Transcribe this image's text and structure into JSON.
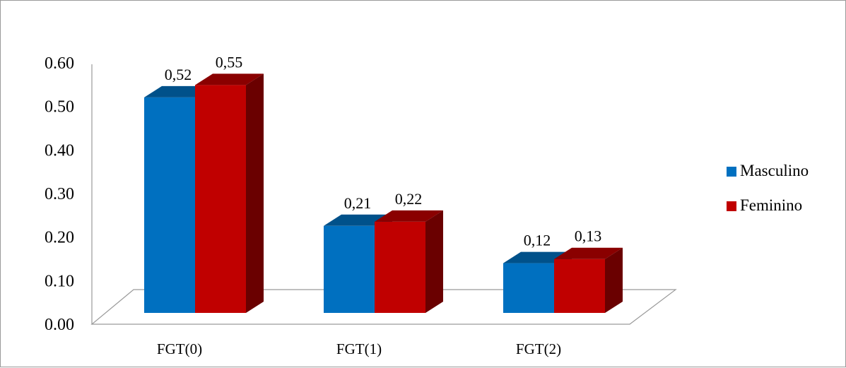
{
  "chart_data": {
    "type": "bar",
    "style": "3d-clustered-column",
    "categories": [
      "FGT(0)",
      "FGT(1)",
      "FGT(2)"
    ],
    "series": [
      {
        "name": "Masculino",
        "values": [
          0.52,
          0.21,
          0.12
        ],
        "labels": [
          "0,52",
          "0,21",
          "0,12"
        ],
        "color": "#0070c0"
      },
      {
        "name": "Feminino",
        "values": [
          0.55,
          0.22,
          0.13
        ],
        "labels": [
          "0,55",
          "0,22",
          "0,13"
        ],
        "color": "#c00000"
      }
    ],
    "y_ticks": [
      "0.00",
      "0.10",
      "0.20",
      "0.30",
      "0.40",
      "0.50",
      "0.60"
    ],
    "ylim": [
      0,
      0.6
    ],
    "grid": false,
    "legend_position": "right"
  }
}
